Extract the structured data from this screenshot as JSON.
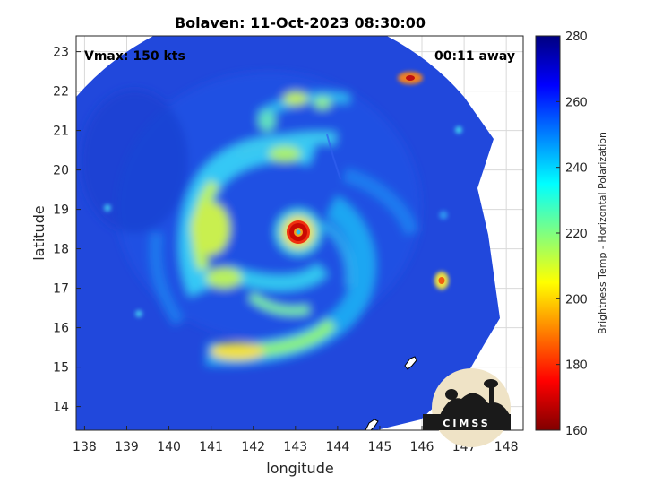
{
  "title": "Bolaven: 11-Oct-2023 08:30:00",
  "vmax_label": "Vmax: 150 kts",
  "time_label": "00:11 away",
  "xlabel": "longitude",
  "ylabel": "latitude",
  "colorbar_label": "Brightness Temp - Horizontal Polarization",
  "logo_text": "CIMSS",
  "chart_data": {
    "type": "heatmap",
    "title": "Bolaven: 11-Oct-2023 08:30:00",
    "xlabel": "longitude",
    "ylabel": "latitude",
    "xlim": [
      137.8,
      148.4
    ],
    "ylim": [
      13.4,
      23.4
    ],
    "x_ticks": [
      138,
      139,
      140,
      141,
      142,
      143,
      144,
      145,
      146,
      147,
      148
    ],
    "y_ticks": [
      14,
      15,
      16,
      17,
      18,
      19,
      20,
      21,
      22,
      23
    ],
    "grid": true,
    "colormap": "jet",
    "colorbar": {
      "min": 160,
      "max": 280,
      "ticks": [
        160,
        180,
        200,
        220,
        240,
        260,
        280
      ],
      "placement": "right"
    },
    "storm_center": {
      "lon": 143.05,
      "lat": 18.4,
      "min_temp": 170
    },
    "features": [
      {
        "name": "eyewall",
        "lon": 143.05,
        "lat": 18.4,
        "temp": 170
      },
      {
        "name": "outer-band-south",
        "lon": 142.2,
        "lat": 15.3,
        "temp": 205
      },
      {
        "name": "band-west",
        "lon": 141.3,
        "lat": 17.6,
        "temp": 215
      },
      {
        "name": "cell-east",
        "lon": 146.5,
        "lat": 17.2,
        "temp": 205
      },
      {
        "name": "cell-northeast",
        "lon": 145.8,
        "lat": 22.3,
        "temp": 190
      },
      {
        "name": "cell-north",
        "lon": 142.9,
        "lat": 21.8,
        "temp": 205
      }
    ],
    "background_temp": 265
  },
  "colors": {
    "jet_low": "#7f0000",
    "jet_high": "#00007f",
    "background": "#1f40d8"
  }
}
